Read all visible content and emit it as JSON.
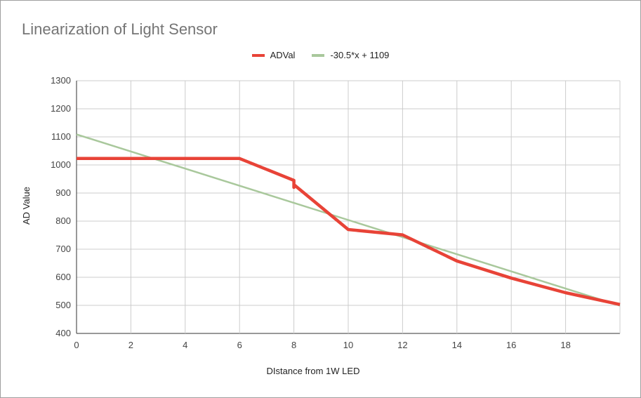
{
  "chart_data": {
    "type": "line",
    "title": "Linearization of Light Sensor",
    "xlabel": "DIstance from 1W LED",
    "ylabel": "AD Value",
    "xlim": [
      0,
      20
    ],
    "ylim": [
      400,
      1300
    ],
    "x_ticks": [
      0,
      2,
      4,
      6,
      8,
      10,
      12,
      14,
      16,
      18
    ],
    "y_ticks": [
      400,
      500,
      600,
      700,
      800,
      900,
      1000,
      1100,
      1200,
      1300
    ],
    "grid": true,
    "legend_position": "top-center",
    "series": [
      {
        "name": "ADVal",
        "color": "#e84337",
        "x": [
          0,
          6,
          8,
          8,
          8,
          10,
          12,
          14,
          16,
          18,
          20
        ],
        "y": [
          1023,
          1023,
          945,
          920,
          930,
          770,
          751,
          658,
          597,
          545,
          503
        ]
      },
      {
        "name": "-30.5*x + 1109",
        "color": "#a9c89c",
        "x": [
          0,
          20
        ],
        "y": [
          1109,
          499
        ]
      }
    ]
  }
}
